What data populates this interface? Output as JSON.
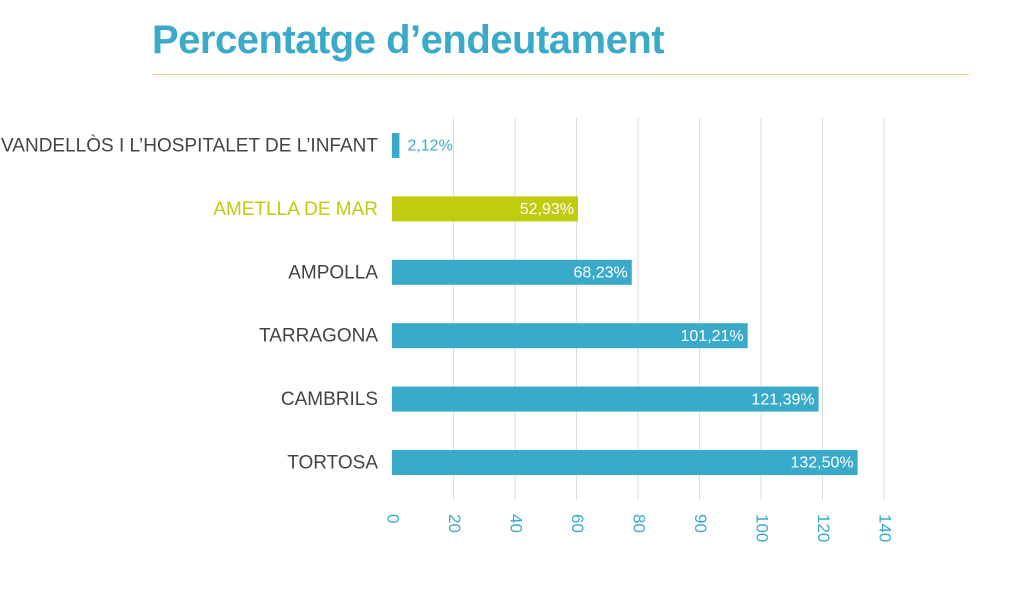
{
  "title": "Percentatge d’endeutament",
  "colors": {
    "accent": "#3aaacb",
    "highlight": "#bfcc0f",
    "label": "#444444",
    "grid": "#dddddd",
    "title_rule": "#f0c892"
  },
  "chart_data": {
    "type": "bar",
    "orientation": "horizontal",
    "title": "Percentatge d’endeutament",
    "categories": [
      "VANDELLÒS I L’HOSPITALET DE L’INFANT",
      "AMETLLA DE MAR",
      "AMPOLLA",
      "TARRAGONA",
      "CAMBRILS",
      "TORTOSA"
    ],
    "values": [
      2.12,
      52.93,
      68.23,
      101.21,
      121.39,
      132.5
    ],
    "value_labels": [
      "2,12%",
      "52,93%",
      "68,23%",
      "101,21%",
      "121,39%",
      "132,50%"
    ],
    "highlighted_category": "AMETLLA DE MAR",
    "xlim": [
      0,
      140
    ],
    "xticks": [
      "0",
      "20",
      "40",
      "60",
      "80",
      "90",
      "100",
      "120",
      "140"
    ],
    "grid": true,
    "xlabel": "",
    "ylabel": ""
  }
}
